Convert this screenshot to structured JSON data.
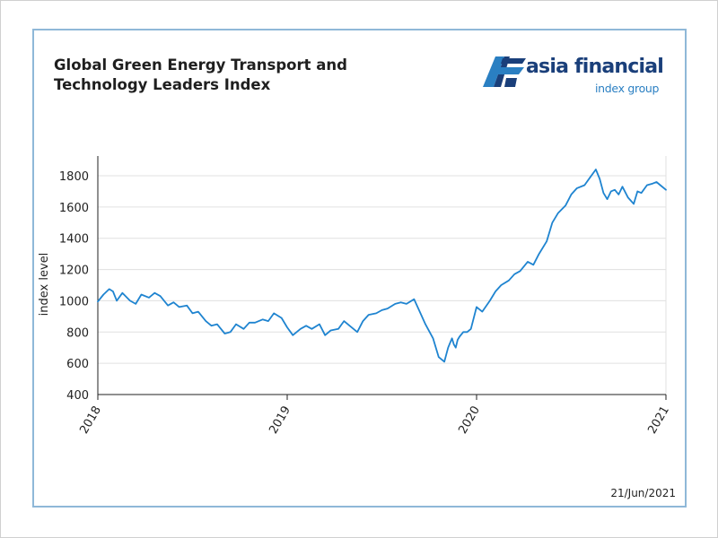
{
  "title_lines": [
    "Global Green Energy Transport and",
    "Technology Leaders Index"
  ],
  "logo": {
    "main": "asia financial",
    "sub": "index group"
  },
  "date_stamp": "21/Jun/2021",
  "colors": {
    "line": "#1f84d0",
    "frame": "#8fb8d8",
    "grid": "#e0e0e0",
    "logo_dark": "#1a3f7a",
    "logo_light": "#2a7fc2"
  },
  "chart_data": {
    "type": "line",
    "title": "Global Green Energy Transport and Technology Leaders Index",
    "xlabel": "",
    "ylabel": "index level",
    "xlim": [
      2018.0,
      2021.0
    ],
    "ylim": [
      400,
      1900
    ],
    "yticks": [
      400,
      600,
      800,
      1000,
      1200,
      1400,
      1600,
      1800
    ],
    "xticks": [
      {
        "value": 2018.0,
        "label": "2018"
      },
      {
        "value": 2019.0,
        "label": "2019"
      },
      {
        "value": 2020.0,
        "label": "2020"
      },
      {
        "value": 2021.0,
        "label": "2021"
      }
    ],
    "grid": true,
    "series": [
      {
        "x": [
          2018.0,
          2018.03,
          2018.06,
          2018.08,
          2018.1,
          2018.13,
          2018.17,
          2018.2,
          2018.23,
          2018.27,
          2018.3,
          2018.33,
          2018.37,
          2018.4,
          2018.43,
          2018.47,
          2018.5,
          2018.53,
          2018.57,
          2018.6,
          2018.63,
          2018.67,
          2018.7,
          2018.73,
          2018.77,
          2018.8,
          2018.83,
          2018.87,
          2018.9,
          2018.93,
          2018.97,
          2019.0,
          2019.03,
          2019.07,
          2019.1,
          2019.13,
          2019.17,
          2019.2,
          2019.23,
          2019.27,
          2019.3,
          2019.33,
          2019.37,
          2019.4,
          2019.43,
          2019.47,
          2019.5,
          2019.53,
          2019.57,
          2019.6,
          2019.63,
          2019.67,
          2019.7,
          2019.73,
          2019.77,
          2019.8,
          2019.83,
          2019.85,
          2019.87,
          2019.88,
          2019.89,
          2019.9,
          2019.91,
          2019.93,
          2019.95,
          2019.97,
          2020.0,
          2020.03,
          2020.07,
          2020.1,
          2020.13,
          2020.17,
          2020.2,
          2020.23,
          2020.27,
          2020.3,
          2020.33,
          2020.37,
          2020.4,
          2020.43,
          2020.47,
          2020.5,
          2020.53,
          2020.57,
          2020.6,
          2020.63,
          2020.65,
          2020.67,
          2020.69,
          2020.71,
          2020.73,
          2020.75,
          2020.77,
          2020.8,
          2020.83,
          2020.85,
          2020.87,
          2020.9,
          2020.93,
          2020.95,
          2020.97,
          2021.0
        ],
        "values": [
          995,
          1040,
          1075,
          1060,
          1000,
          1050,
          1000,
          980,
          1040,
          1020,
          1050,
          1030,
          970,
          990,
          960,
          970,
          920,
          930,
          870,
          840,
          850,
          790,
          800,
          850,
          820,
          860,
          860,
          880,
          870,
          920,
          890,
          830,
          780,
          820,
          840,
          820,
          850,
          780,
          810,
          820,
          870,
          840,
          800,
          870,
          910,
          920,
          940,
          950,
          980,
          990,
          980,
          1010,
          930,
          850,
          760,
          640,
          610,
          700,
          760,
          720,
          700,
          750,
          770,
          800,
          800,
          820,
          960,
          930,
          1000,
          1060,
          1100,
          1130,
          1170,
          1190,
          1250,
          1230,
          1300,
          1380,
          1500,
          1560,
          1610,
          1680,
          1720,
          1740,
          1790,
          1840,
          1780,
          1690,
          1650,
          1700,
          1710,
          1680,
          1730,
          1660,
          1620,
          1700,
          1690,
          1740,
          1750,
          1760,
          1740,
          1710
        ]
      }
    ]
  }
}
